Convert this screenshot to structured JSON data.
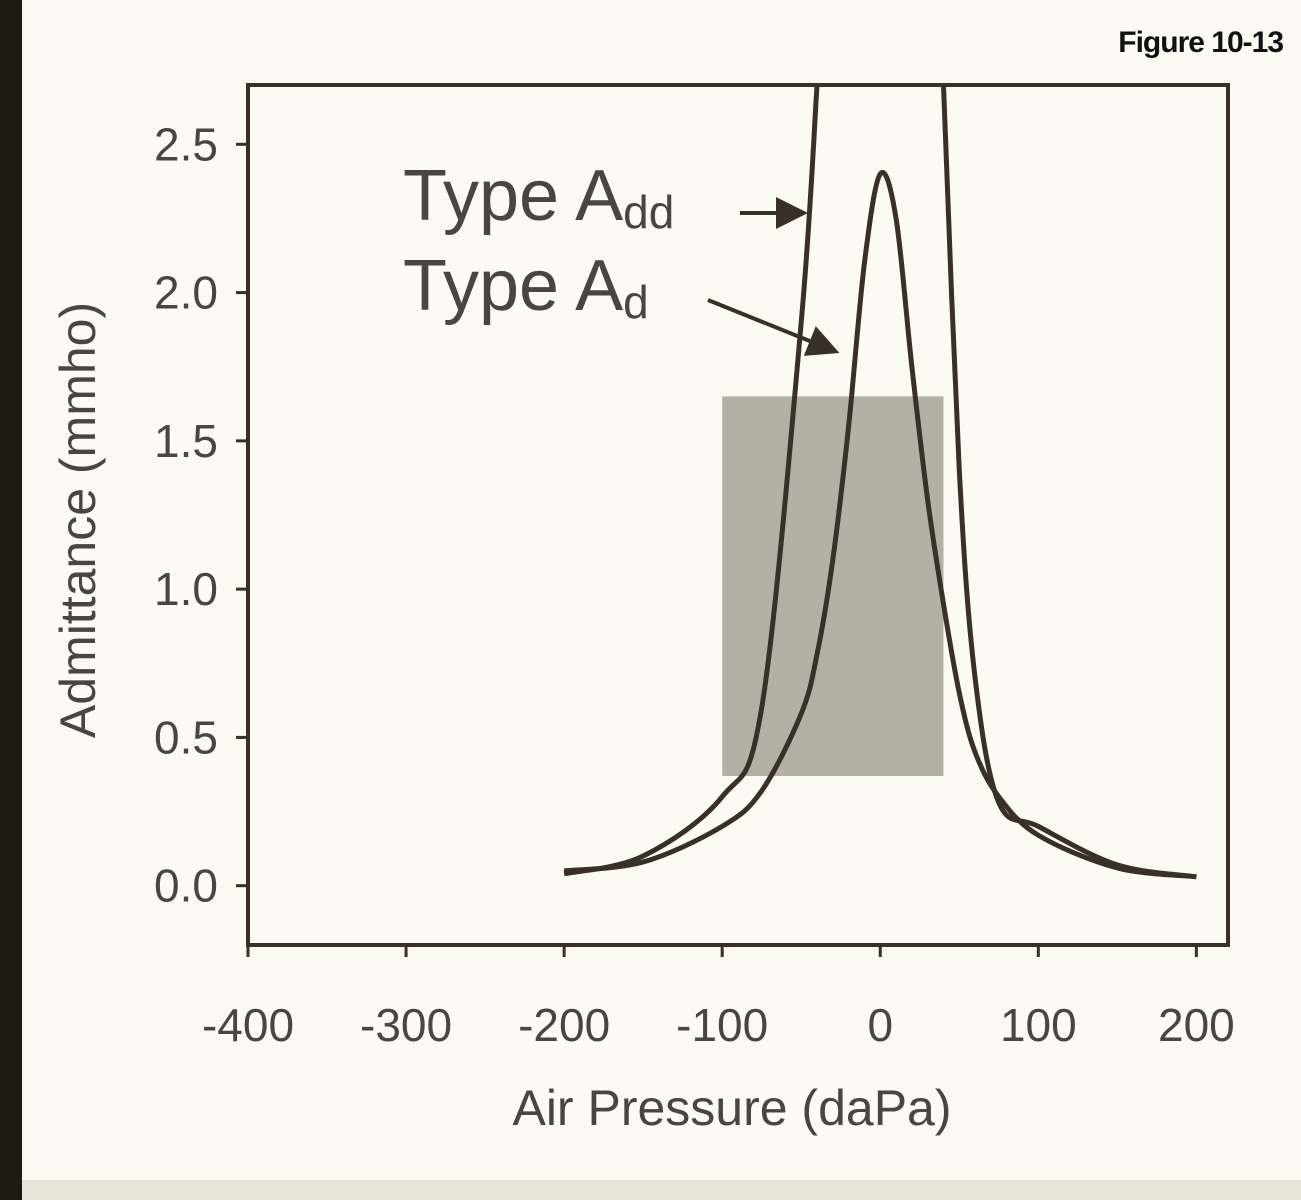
{
  "chart_data": {
    "type": "line",
    "title": "Figure 10-13",
    "x_label": "Air Pressure (daPa)",
    "y_label": "Admittance (mmho)",
    "x": [
      -200,
      -150,
      -100,
      -75,
      -50,
      -40,
      -30,
      -20,
      -10,
      0,
      10,
      20,
      30,
      40,
      50,
      60,
      75,
      100,
      150,
      200
    ],
    "series": [
      {
        "name": "Type Add",
        "color": "#3a302a",
        "values": [
          0.04,
          0.1,
          0.3,
          0.6,
          1.9,
          2.7,
          null,
          null,
          null,
          null,
          null,
          null,
          null,
          2.7,
          1.4,
          0.7,
          0.28,
          0.2,
          0.07,
          0.03
        ]
      },
      {
        "name": "Type Ad",
        "color": "#3a302a",
        "values": [
          0.05,
          0.08,
          0.2,
          0.32,
          0.58,
          0.78,
          1.1,
          1.55,
          2.1,
          2.4,
          2.25,
          1.75,
          1.3,
          0.95,
          0.65,
          0.45,
          0.3,
          0.17,
          0.06,
          0.03
        ]
      }
    ],
    "annotations": [
      {
        "text": "Type A",
        "sub": "dd"
      },
      {
        "text": "Type A",
        "sub": "d"
      }
    ],
    "shaded_region": {
      "x": [
        -100,
        40
      ],
      "y": [
        0.37,
        1.65
      ],
      "color": "#b5b0a6"
    },
    "xlim": [
      -400,
      220
    ],
    "ylim": [
      -0.2,
      2.7
    ],
    "xticks": [
      -400,
      -300,
      -200,
      -100,
      0,
      100,
      200
    ],
    "yticks": [
      {
        "value": 0,
        "label": "0.0"
      },
      0.5,
      {
        "value": 1,
        "label": "1.0"
      },
      1.5,
      {
        "value": 2,
        "label": "2.0"
      },
      2.5
    ],
    "grid": false
  }
}
